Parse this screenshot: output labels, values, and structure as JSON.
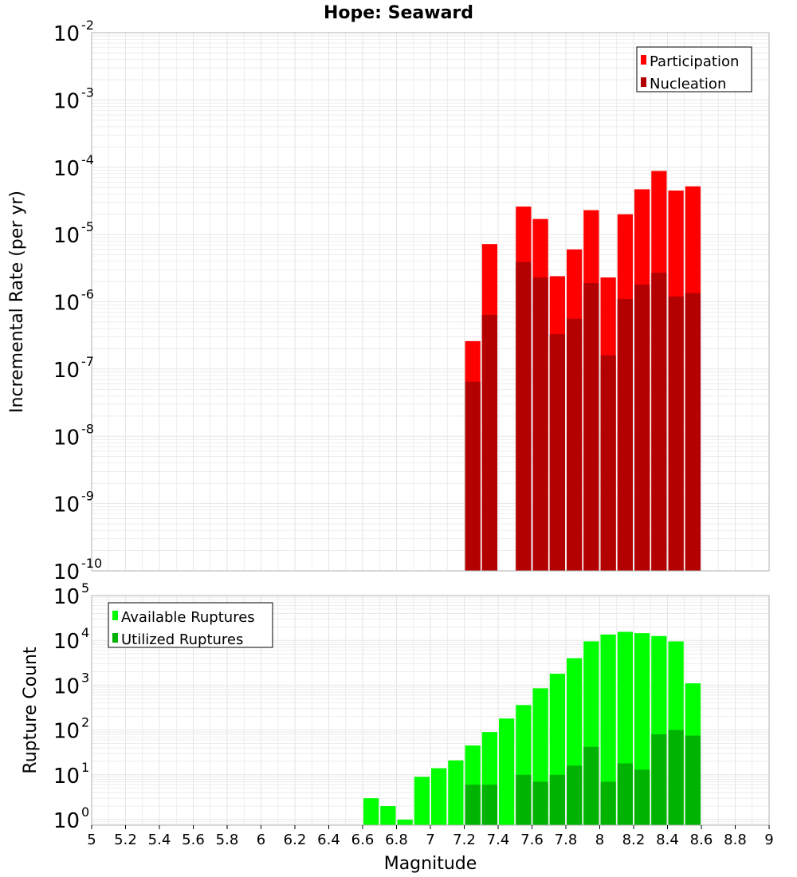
{
  "title": "Hope: Seaward",
  "xlabel": "Magnitude",
  "colors": {
    "participation": "#ff0000",
    "nucleation": "#b30000",
    "available": "#00ff00",
    "utilized": "#00b300",
    "grid": "#e6e6e6",
    "frame": "#b0b0b0"
  },
  "chart_data": [
    {
      "type": "bar",
      "scale": "log",
      "ylabel": "Incremental Rate (per yr)",
      "ylim": [
        1e-10,
        0.01
      ],
      "xlim": [
        5,
        9
      ],
      "x_ticks": [
        "5",
        "5.2",
        "5.4",
        "5.6",
        "5.8",
        "6",
        "6.2",
        "6.4",
        "6.6",
        "6.8",
        "7",
        "7.2",
        "7.4",
        "7.6",
        "7.8",
        "8",
        "8.2",
        "8.4",
        "8.6",
        "8.8",
        "9"
      ],
      "y_ticks": [
        {
          "base": "10",
          "exp": "-10"
        },
        {
          "base": "10",
          "exp": "-9"
        },
        {
          "base": "10",
          "exp": "-8"
        },
        {
          "base": "10",
          "exp": "-7"
        },
        {
          "base": "10",
          "exp": "-6"
        },
        {
          "base": "10",
          "exp": "-5"
        },
        {
          "base": "10",
          "exp": "-4"
        },
        {
          "base": "10",
          "exp": "-3"
        },
        {
          "base": "10",
          "exp": "-2"
        }
      ],
      "legend_position": "top-right",
      "x": [
        7.25,
        7.35,
        7.55,
        7.65,
        7.75,
        7.85,
        7.95,
        8.05,
        8.15,
        8.25,
        8.35,
        8.45,
        8.55
      ],
      "series": [
        {
          "name": "Participation",
          "values": [
            2.6e-07,
            7.2e-06,
            2.6e-05,
            1.7e-05,
            2.4e-06,
            6e-06,
            2.3e-05,
            2.3e-06,
            2e-05,
            4.7e-05,
            8.8e-05,
            4.5e-05,
            5.2e-05
          ]
        },
        {
          "name": "Nucleation",
          "values": [
            6.5e-08,
            6.4e-07,
            3.9e-06,
            2.3e-06,
            3.3e-07,
            5.6e-07,
            1.9e-06,
            1.6e-07,
            1.1e-06,
            1.8e-06,
            2.7e-06,
            1.2e-06,
            1.35e-06
          ]
        }
      ]
    },
    {
      "type": "bar",
      "scale": "log",
      "ylabel": "Rupture Count",
      "ylim": [
        0.75,
        100000
      ],
      "xlim": [
        5,
        9
      ],
      "y_ticks": [
        {
          "base": "10",
          "exp": "0"
        },
        {
          "base": "10",
          "exp": "1"
        },
        {
          "base": "10",
          "exp": "2"
        },
        {
          "base": "10",
          "exp": "3"
        },
        {
          "base": "10",
          "exp": "4"
        },
        {
          "base": "10",
          "exp": "5"
        }
      ],
      "legend_position": "top-left",
      "x": [
        6.65,
        6.75,
        6.85,
        6.95,
        7.05,
        7.15,
        7.25,
        7.35,
        7.45,
        7.55,
        7.65,
        7.75,
        7.85,
        7.95,
        8.05,
        8.15,
        8.25,
        8.35,
        8.45,
        8.55
      ],
      "series": [
        {
          "name": "Available Ruptures",
          "values": [
            3,
            2,
            1,
            9,
            14,
            21,
            45,
            90,
            180,
            360,
            850,
            1800,
            4000,
            9500,
            13500,
            15500,
            14500,
            12500,
            9500,
            1100
          ]
        },
        {
          "name": "Utilized Ruptures",
          "values": [
            null,
            null,
            null,
            null,
            null,
            null,
            6,
            6,
            null,
            10,
            7,
            10,
            16,
            42,
            7,
            18,
            13,
            80,
            100,
            75
          ]
        }
      ]
    }
  ]
}
